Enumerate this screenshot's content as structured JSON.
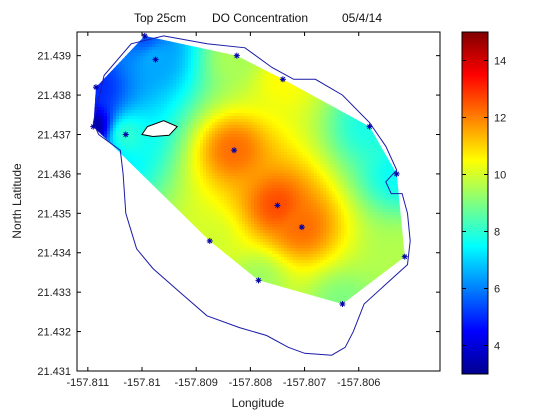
{
  "chart_data": {
    "type": "heatmap",
    "title_parts": [
      "Top 25cm",
      "DO Concentration",
      "05/4/14"
    ],
    "xlabel": "Longitude",
    "ylabel": "North Latitude",
    "xlim": [
      -157.8112,
      -157.8045
    ],
    "ylim": [
      21.431,
      21.4396
    ],
    "x_ticks": [
      -157.811,
      -157.81,
      -157.809,
      -157.808,
      -157.807,
      -157.806
    ],
    "x_tick_labels": [
      "-157.811",
      "-157.81",
      "-157.809",
      "-157.808",
      "-157.807",
      "-157.806"
    ],
    "y_ticks": [
      21.431,
      21.432,
      21.433,
      21.434,
      21.435,
      21.436,
      21.437,
      21.438,
      21.439
    ],
    "y_tick_labels": [
      "21.431",
      "21.432",
      "21.433",
      "21.434",
      "21.435",
      "21.436",
      "21.437",
      "21.438",
      "21.439"
    ],
    "colorbar": {
      "min": 3,
      "max": 15,
      "ticks": [
        4,
        6,
        8,
        10,
        12,
        14
      ],
      "tick_labels": [
        "4",
        "6",
        "8",
        "10",
        "12",
        "14"
      ],
      "colormap": "jet"
    },
    "stations": [
      {
        "x": -157.8109,
        "y": 21.4372,
        "value": 3.5
      },
      {
        "x": -157.81085,
        "y": 21.4382,
        "value": 5.0
      },
      {
        "x": -157.80995,
        "y": 21.4395,
        "value": 5.5
      },
      {
        "x": -157.80975,
        "y": 21.4389,
        "value": 6.5
      },
      {
        "x": -157.8103,
        "y": 21.437,
        "value": 8.0
      },
      {
        "x": -157.8083,
        "y": 21.4366,
        "value": 12.2
      },
      {
        "x": -157.80825,
        "y": 21.439,
        "value": 9.5
      },
      {
        "x": -157.8074,
        "y": 21.4384,
        "value": 10.5
      },
      {
        "x": -157.8058,
        "y": 21.4372,
        "value": 7.8
      },
      {
        "x": -157.8053,
        "y": 21.436,
        "value": 7.6
      },
      {
        "x": -157.80515,
        "y": 21.4339,
        "value": 9.6
      },
      {
        "x": -157.8063,
        "y": 21.4327,
        "value": 9.0
      },
      {
        "x": -157.80785,
        "y": 21.4333,
        "value": 9.4
      },
      {
        "x": -157.80875,
        "y": 21.4343,
        "value": 10.0
      },
      {
        "x": -157.80705,
        "y": 21.43465,
        "value": 12.2
      },
      {
        "x": -157.8075,
        "y": 21.4352,
        "value": 12.6
      }
    ],
    "hull": [
      [
        -157.8109,
        21.4372
      ],
      [
        -157.81085,
        21.4382
      ],
      [
        -157.80995,
        21.4395
      ],
      [
        -157.80825,
        21.439
      ],
      [
        -157.8074,
        21.4384
      ],
      [
        -157.8058,
        21.4372
      ],
      [
        -157.8053,
        21.436
      ],
      [
        -157.80515,
        21.4339
      ],
      [
        -157.8063,
        21.4327
      ],
      [
        -157.80785,
        21.4333
      ],
      [
        -157.80875,
        21.4343
      ]
    ],
    "shoreline": [
      [
        -157.8109,
        21.4373
      ],
      [
        -157.8107,
        21.4385
      ],
      [
        -157.8102,
        21.4393
      ],
      [
        -157.8096,
        21.4395
      ],
      [
        -157.8088,
        21.4393
      ],
      [
        -157.8081,
        21.4392
      ],
      [
        -157.8076,
        21.4387
      ],
      [
        -157.8072,
        21.4384
      ],
      [
        -157.8068,
        21.4384
      ],
      [
        -157.8063,
        21.438
      ],
      [
        -157.8058,
        21.4373
      ],
      [
        -157.8055,
        21.4367
      ],
      [
        -157.8053,
        21.4361
      ],
      [
        -157.8055,
        21.4358
      ],
      [
        -157.8054,
        21.4355
      ],
      [
        -157.8052,
        21.4355
      ],
      [
        -157.8051,
        21.435
      ],
      [
        -157.80505,
        21.4343
      ],
      [
        -157.8051,
        21.4337
      ],
      [
        -157.8055,
        21.4332
      ],
      [
        -157.8059,
        21.4327
      ],
      [
        -157.8061,
        21.432
      ],
      [
        -157.80625,
        21.4316
      ],
      [
        -157.8065,
        21.4314
      ],
      [
        -157.807,
        21.43145
      ],
      [
        -157.8073,
        21.4316
      ],
      [
        -157.8077,
        21.4319
      ],
      [
        -157.8082,
        21.4321
      ],
      [
        -157.8088,
        21.4324
      ],
      [
        -157.8093,
        21.433
      ],
      [
        -157.8098,
        21.4336
      ],
      [
        -157.8101,
        21.4341
      ],
      [
        -157.8103,
        21.435
      ],
      [
        -157.81035,
        21.436
      ],
      [
        -157.8104,
        21.4366
      ],
      [
        -157.8108,
        21.437
      ],
      [
        -157.8109,
        21.4373
      ]
    ],
    "island": [
      [
        -157.8099,
        21.4372
      ],
      [
        -157.8096,
        21.43735
      ],
      [
        -157.80935,
        21.4372
      ],
      [
        -157.8095,
        21.43698
      ],
      [
        -157.8098,
        21.43695
      ],
      [
        -157.81,
        21.437
      ],
      [
        -157.8099,
        21.4372
      ]
    ]
  }
}
